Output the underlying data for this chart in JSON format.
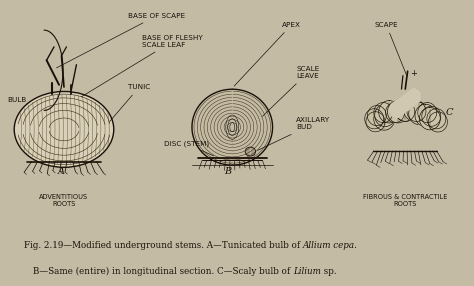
{
  "fig_width": 4.74,
  "fig_height": 2.86,
  "dpi": 100,
  "bg_color": "#c4bba5",
  "dark": "#1a1008",
  "mid": "#3a2a10",
  "lt": "#6a5a40",
  "cap1_normal": "Fig. 2.19—Modified underground stems. A—Tunicated bulb of ",
  "cap1_italic": "Allium cepa.",
  "cap2_normal": "B—Same (entire) in longitudinal section. C—Scaly bulb of ",
  "cap2_italic": "Lilium",
  "cap2_end": " sp."
}
